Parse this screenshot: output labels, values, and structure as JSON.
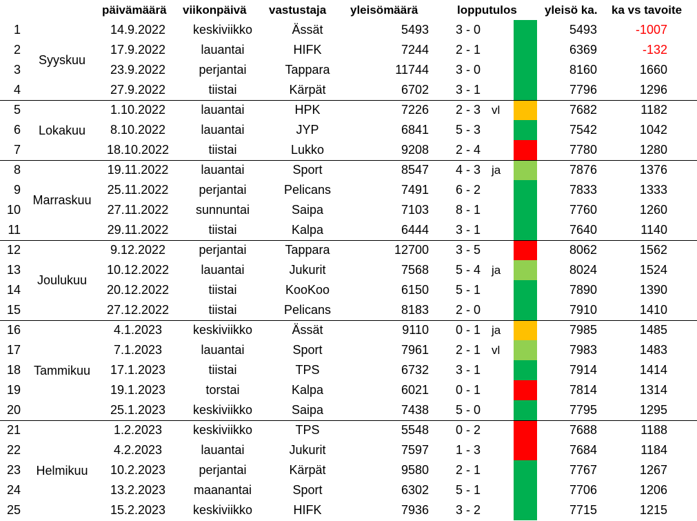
{
  "headers": {
    "date": "päivämäärä",
    "weekday": "viikonpäivä",
    "opponent": "vastustaja",
    "attendance": "yleisömäärä",
    "result": "lopputulos",
    "avg": "yleisö ka.",
    "vs_target": "ka vs tavoite"
  },
  "colors": {
    "win": "#00b050",
    "ot_loss": "#ffc000",
    "ot_win": "#92d050",
    "loss": "#ff0000",
    "negative_text": "#ff0000"
  },
  "months": [
    {
      "name": "Syyskuu"
    },
    {
      "name": "Lokakuu"
    },
    {
      "name": "Marraskuu"
    },
    {
      "name": "Joulukuu"
    },
    {
      "name": "Tammikuu"
    },
    {
      "name": "Helmikuu"
    }
  ],
  "rows": [
    {
      "n": "1",
      "date": "14.9.2022",
      "day": "keskiviikko",
      "opp": "Ässät",
      "att": "5493",
      "res": "3 - 0",
      "sfx": "",
      "status": "win",
      "avg": "5493",
      "diff": "-1007"
    },
    {
      "n": "2",
      "date": "17.9.2022",
      "day": "lauantai",
      "opp": "HIFK",
      "att": "7244",
      "res": "2 - 1",
      "sfx": "",
      "status": "win",
      "avg": "6369",
      "diff": "-132"
    },
    {
      "n": "3",
      "date": "23.9.2022",
      "day": "perjantai",
      "opp": "Tappara",
      "att": "11744",
      "res": "3 - 0",
      "sfx": "",
      "status": "win",
      "avg": "8160",
      "diff": "1660"
    },
    {
      "n": "4",
      "date": "27.9.2022",
      "day": "tiistai",
      "opp": "Kärpät",
      "att": "6702",
      "res": "3 - 1",
      "sfx": "",
      "status": "win",
      "avg": "7796",
      "diff": "1296"
    },
    {
      "n": "5",
      "date": "1.10.2022",
      "day": "lauantai",
      "opp": "HPK",
      "att": "7226",
      "res": "2 - 3",
      "sfx": "vl",
      "status": "ot_loss",
      "avg": "7682",
      "diff": "1182"
    },
    {
      "n": "6",
      "date": "8.10.2022",
      "day": "lauantai",
      "opp": "JYP",
      "att": "6841",
      "res": "5 - 3",
      "sfx": "",
      "status": "win",
      "avg": "7542",
      "diff": "1042"
    },
    {
      "n": "7",
      "date": "18.10.2022",
      "day": "tiistai",
      "opp": "Lukko",
      "att": "9208",
      "res": "2 - 4",
      "sfx": "",
      "status": "loss",
      "avg": "7780",
      "diff": "1280"
    },
    {
      "n": "8",
      "date": "19.11.2022",
      "day": "lauantai",
      "opp": "Sport",
      "att": "8547",
      "res": "4 - 3",
      "sfx": "ja",
      "status": "ot_win",
      "avg": "7876",
      "diff": "1376"
    },
    {
      "n": "9",
      "date": "25.11.2022",
      "day": "perjantai",
      "opp": "Pelicans",
      "att": "7491",
      "res": "6 - 2",
      "sfx": "",
      "status": "win",
      "avg": "7833",
      "diff": "1333"
    },
    {
      "n": "10",
      "date": "27.11.2022",
      "day": "sunnuntai",
      "opp": "Saipa",
      "att": "7103",
      "res": "8 - 1",
      "sfx": "",
      "status": "win",
      "avg": "7760",
      "diff": "1260"
    },
    {
      "n": "11",
      "date": "29.11.2022",
      "day": "tiistai",
      "opp": "Kalpa",
      "att": "6444",
      "res": "3 - 1",
      "sfx": "",
      "status": "win",
      "avg": "7640",
      "diff": "1140"
    },
    {
      "n": "12",
      "date": "9.12.2022",
      "day": "perjantai",
      "opp": "Tappara",
      "att": "12700",
      "res": "3 - 5",
      "sfx": "",
      "status": "loss",
      "avg": "8062",
      "diff": "1562"
    },
    {
      "n": "13",
      "date": "10.12.2022",
      "day": "lauantai",
      "opp": "Jukurit",
      "att": "7568",
      "res": "5 - 4",
      "sfx": "ja",
      "status": "ot_win",
      "avg": "8024",
      "diff": "1524"
    },
    {
      "n": "14",
      "date": "20.12.2022",
      "day": "tiistai",
      "opp": "KooKoo",
      "att": "6150",
      "res": "5 - 1",
      "sfx": "",
      "status": "win",
      "avg": "7890",
      "diff": "1390"
    },
    {
      "n": "15",
      "date": "27.12.2022",
      "day": "tiistai",
      "opp": "Pelicans",
      "att": "8183",
      "res": "2 - 0",
      "sfx": "",
      "status": "win",
      "avg": "7910",
      "diff": "1410"
    },
    {
      "n": "16",
      "date": "4.1.2023",
      "day": "keskiviikko",
      "opp": "Ässät",
      "att": "9110",
      "res": "0 - 1",
      "sfx": "ja",
      "status": "ot_loss",
      "avg": "7985",
      "diff": "1485"
    },
    {
      "n": "17",
      "date": "7.1.2023",
      "day": "lauantai",
      "opp": "Sport",
      "att": "7961",
      "res": "2 - 1",
      "sfx": "vl",
      "status": "ot_win",
      "avg": "7983",
      "diff": "1483"
    },
    {
      "n": "18",
      "date": "17.1.2023",
      "day": "tiistai",
      "opp": "TPS",
      "att": "6732",
      "res": "3 - 1",
      "sfx": "",
      "status": "win",
      "avg": "7914",
      "diff": "1414"
    },
    {
      "n": "19",
      "date": "19.1.2023",
      "day": "torstai",
      "opp": "Kalpa",
      "att": "6021",
      "res": "0 - 1",
      "sfx": "",
      "status": "loss",
      "avg": "7814",
      "diff": "1314"
    },
    {
      "n": "20",
      "date": "25.1.2023",
      "day": "keskiviikko",
      "opp": "Saipa",
      "att": "7438",
      "res": "5 - 0",
      "sfx": "",
      "status": "win",
      "avg": "7795",
      "diff": "1295"
    },
    {
      "n": "21",
      "date": "1.2.2023",
      "day": "keskiviikko",
      "opp": "TPS",
      "att": "5548",
      "res": "0 - 2",
      "sfx": "",
      "status": "loss",
      "avg": "7688",
      "diff": "1188"
    },
    {
      "n": "22",
      "date": "4.2.2023",
      "day": "lauantai",
      "opp": "Jukurit",
      "att": "7597",
      "res": "1 - 3",
      "sfx": "",
      "status": "loss",
      "avg": "7684",
      "diff": "1184"
    },
    {
      "n": "23",
      "date": "10.2.2023",
      "day": "perjantai",
      "opp": "Kärpät",
      "att": "9580",
      "res": "2 - 1",
      "sfx": "",
      "status": "win",
      "avg": "7767",
      "diff": "1267"
    },
    {
      "n": "24",
      "date": "13.2.2023",
      "day": "maanantai",
      "opp": "Sport",
      "att": "6302",
      "res": "5 - 1",
      "sfx": "",
      "status": "win",
      "avg": "7706",
      "diff": "1206"
    },
    {
      "n": "25",
      "date": "15.2.2023",
      "day": "keskiviikko",
      "opp": "HIFK",
      "att": "7936",
      "res": "3 - 2",
      "sfx": "",
      "status": "win",
      "avg": "7715",
      "diff": "1215"
    }
  ]
}
